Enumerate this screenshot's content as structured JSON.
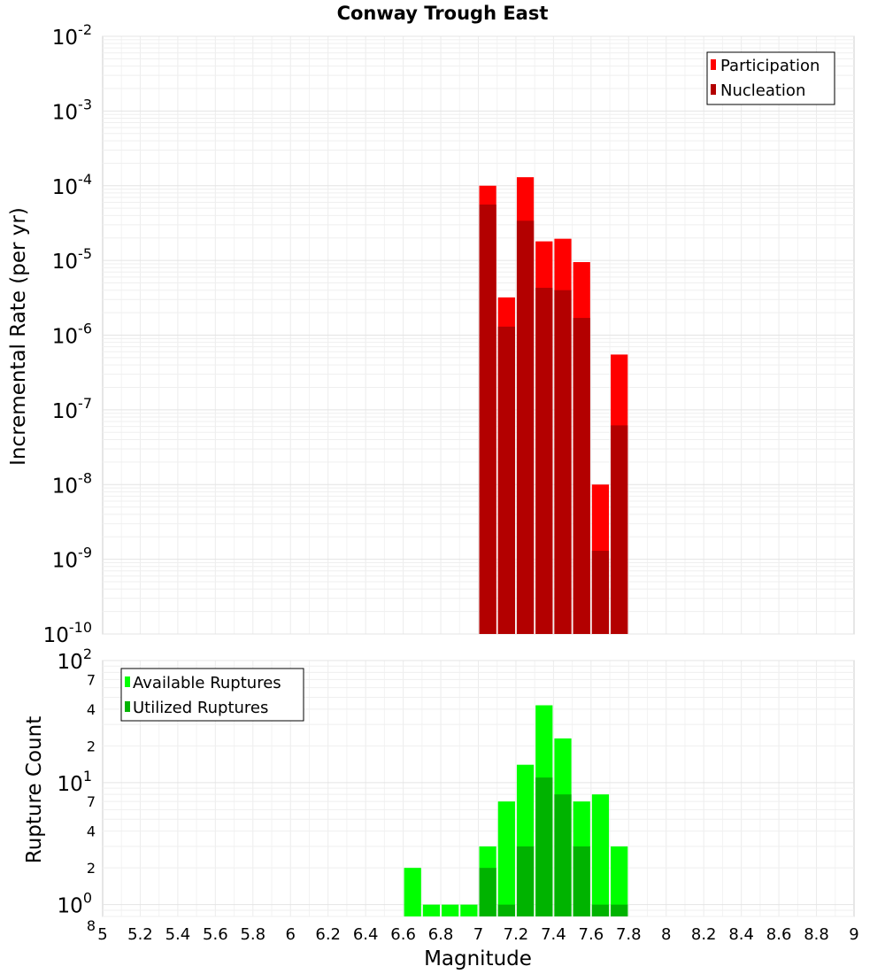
{
  "chart_data": [
    {
      "type": "bar",
      "title": "Conway Trough East",
      "ylabel": "Incremental Rate (per yr)",
      "yscale": "log",
      "ylim": [
        1e-10,
        0.01
      ],
      "ytick_labels": [
        {
          "base": "10",
          "exp": "-10"
        },
        {
          "base": "10",
          "exp": "-9"
        },
        {
          "base": "10",
          "exp": "-8"
        },
        {
          "base": "10",
          "exp": "-7"
        },
        {
          "base": "10",
          "exp": "-6"
        },
        {
          "base": "10",
          "exp": "-5"
        },
        {
          "base": "10",
          "exp": "-4"
        },
        {
          "base": "10",
          "exp": "-3"
        },
        {
          "base": "10",
          "exp": "-2"
        }
      ],
      "grid": true,
      "legend_position": "top-right",
      "x": [
        7.05,
        7.15,
        7.25,
        7.35,
        7.45,
        7.55,
        7.65,
        7.75
      ],
      "series": [
        {
          "name": "Participation",
          "color": "#ff0000",
          "values": [
            0.0001,
            3.2e-06,
            0.00013,
            1.8e-05,
            1.95e-05,
            9.5e-06,
            1e-08,
            5.5e-07
          ]
        },
        {
          "name": "Nucleation",
          "color": "#b30000",
          "values": [
            5.6e-05,
            1.3e-06,
            3.4e-05,
            4.3e-06,
            4e-06,
            1.7e-06,
            1.3e-09,
            6.2e-08
          ]
        }
      ]
    },
    {
      "type": "bar",
      "ylabel": "Rupture Count",
      "yscale": "log",
      "ylim": [
        0.8,
        100
      ],
      "ytick_labels": [
        {
          "base": "10",
          "exp": "0"
        },
        {
          "base": "10",
          "exp": "1"
        },
        {
          "base": "10",
          "exp": "2"
        }
      ],
      "minor_tick_labels": [
        "8",
        "2",
        "4",
        "7",
        "2",
        "4",
        "7"
      ],
      "grid": true,
      "legend_position": "top-left",
      "x": [
        6.65,
        6.75,
        6.85,
        6.95,
        7.05,
        7.15,
        7.25,
        7.35,
        7.45,
        7.55,
        7.65,
        7.75
      ],
      "series": [
        {
          "name": "Available Ruptures",
          "color": "#00ff00",
          "values": [
            2,
            1,
            1,
            1,
            3,
            7,
            14,
            43,
            23,
            7,
            8,
            3
          ]
        },
        {
          "name": "Utilized Ruptures",
          "color": "#00b300",
          "values": [
            0,
            0,
            0,
            0,
            2,
            1,
            3,
            11,
            8,
            3,
            1,
            1
          ]
        }
      ],
      "xlabel": "Magnitude",
      "xlim": [
        5,
        9
      ],
      "xtick_labels": [
        "5",
        "5.2",
        "5.4",
        "5.6",
        "5.8",
        "6",
        "6.2",
        "6.4",
        "6.6",
        "6.8",
        "7",
        "7.2",
        "7.4",
        "7.6",
        "7.8",
        "8",
        "8.2",
        "8.4",
        "8.6",
        "8.8",
        "9"
      ]
    }
  ]
}
